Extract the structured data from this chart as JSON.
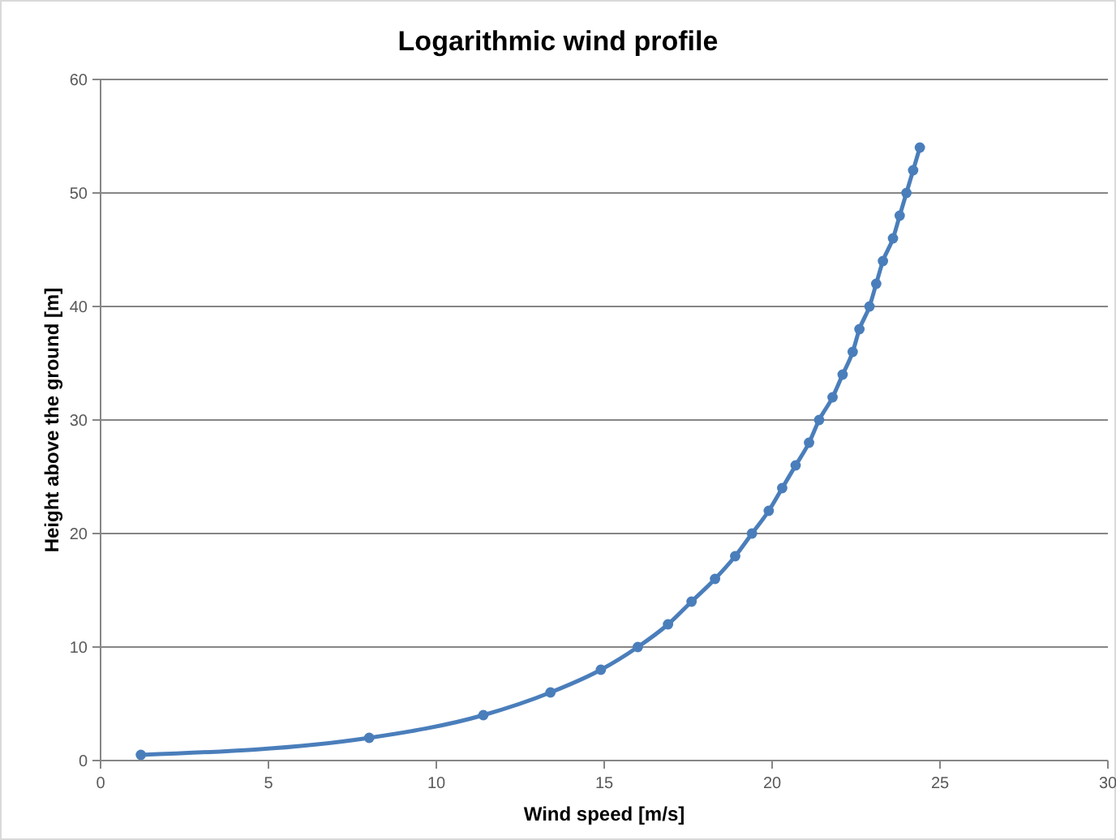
{
  "chart_data": {
    "type": "line",
    "title": "Logarithmic wind profile",
    "xlabel": "Wind speed [m/s]",
    "ylabel": "Height above the ground [m]",
    "xlim": [
      0,
      30
    ],
    "xticks": [
      0,
      5,
      10,
      15,
      20,
      25,
      30
    ],
    "ylim": [
      0,
      60
    ],
    "yticks": [
      0,
      10,
      20,
      30,
      40,
      50,
      60
    ],
    "grid": "y",
    "marker": "circle",
    "series": [
      {
        "color": "#4a7ebb",
        "x": [
          1.2,
          8.0,
          11.4,
          13.4,
          14.9,
          16.0,
          16.9,
          17.6,
          18.3,
          18.9,
          19.4,
          19.9,
          20.3,
          20.7,
          21.1,
          21.4,
          21.8,
          22.1,
          22.4,
          22.6,
          22.9,
          23.1,
          23.3,
          23.6,
          23.8,
          24.0,
          24.2,
          24.4
        ],
        "values": [
          0.5,
          2,
          4,
          6,
          8,
          10,
          12,
          14,
          16,
          18,
          20,
          22,
          24,
          26,
          28,
          30,
          32,
          34,
          36,
          38,
          40,
          42,
          44,
          46,
          48,
          50,
          52,
          54
        ]
      }
    ]
  }
}
